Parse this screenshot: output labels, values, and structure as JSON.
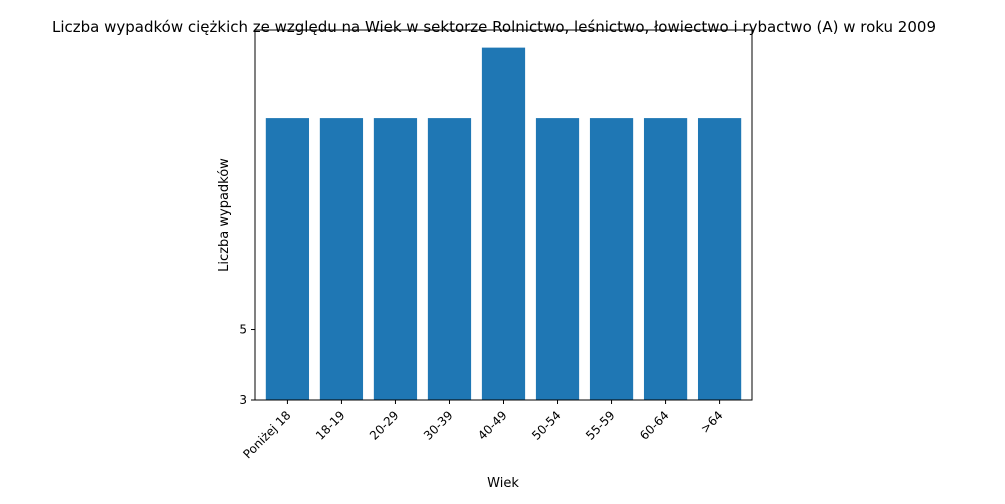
{
  "chart_data": {
    "type": "bar",
    "title": "Liczba wypadków ciężkich ze względu na Wiek w sektorze Rolnictwo, leśnictwo, łowiectwo i rybactwo (A) w roku 2009",
    "xlabel": "Wiek",
    "ylabel": "Liczba wypadków",
    "categories": [
      "Poniżej 18",
      "18-19",
      "20-29",
      "30-39",
      "40-49",
      "50-54",
      "55-59",
      "60-64",
      ">64"
    ],
    "values": [
      11,
      11,
      11,
      11,
      13,
      11,
      11,
      11,
      11
    ],
    "ylim": [
      3,
      13.5
    ],
    "yticks": [
      "3",
      "5"
    ],
    "bar_color": "#1f77b4",
    "grid": false,
    "legend": "none"
  }
}
